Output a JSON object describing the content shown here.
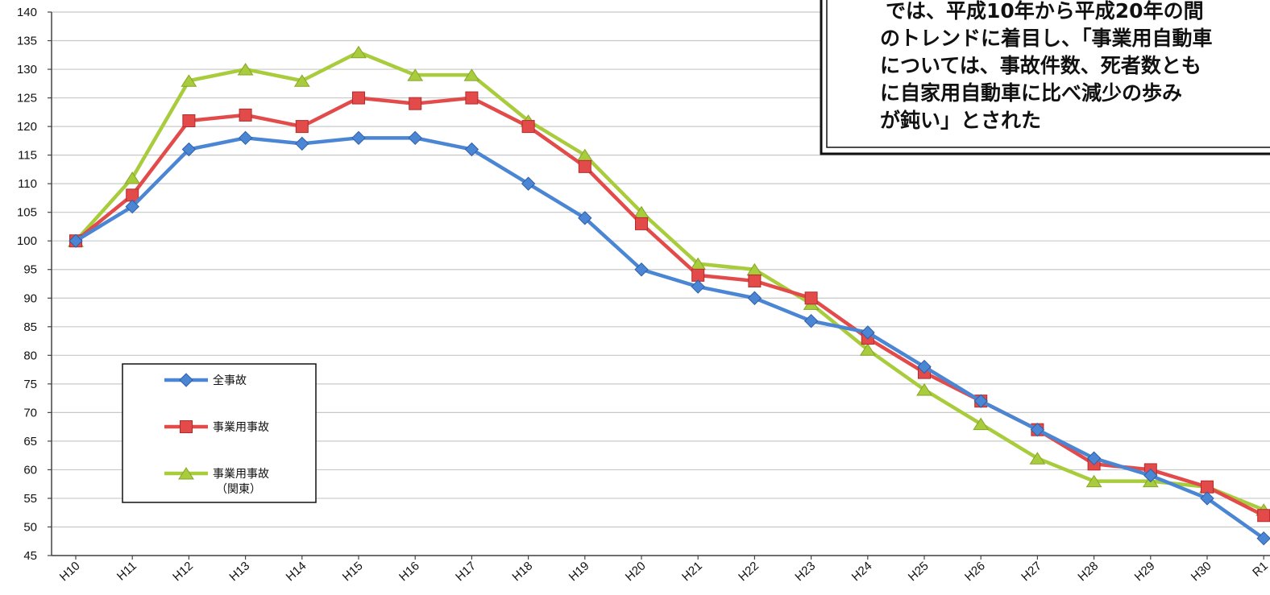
{
  "chart_data": {
    "type": "line",
    "categories": [
      "H10",
      "H11",
      "H12",
      "H13",
      "H14",
      "H15",
      "H16",
      "H17",
      "H18",
      "H19",
      "H20",
      "H21",
      "H22",
      "H23",
      "H24",
      "H25",
      "H26",
      "H27",
      "H28",
      "H29",
      "H30",
      "R1"
    ],
    "ylim": [
      45,
      140
    ],
    "ytick_step": 5,
    "grid": true,
    "legend_position": "bottom-left",
    "series": [
      {
        "name": "全事故",
        "color": "#4a86d4",
        "marker": "diamond",
        "values": [
          100,
          106,
          116,
          118,
          117,
          118,
          118,
          116,
          110,
          104,
          95,
          92,
          90,
          86,
          84,
          78,
          72,
          67,
          62,
          59,
          55,
          48
        ]
      },
      {
        "name": "事業用事故",
        "color": "#e34a4a",
        "marker": "square",
        "values": [
          100,
          108,
          121,
          122,
          120,
          125,
          124,
          125,
          120,
          113,
          103,
          94,
          93,
          90,
          83,
          77,
          72,
          67,
          61,
          60,
          57,
          52
        ]
      },
      {
        "name": "事業用事故",
        "name_line2": "（関東）",
        "color": "#a8cc3c",
        "marker": "triangle",
        "values": [
          100,
          111,
          128,
          130,
          128,
          133,
          129,
          129,
          121,
          115,
          105,
          96,
          95,
          89,
          81,
          74,
          68,
          62,
          58,
          58,
          57,
          53
        ]
      }
    ],
    "annotation": {
      "lines": [
        "では、平成10年から平成20年の間",
        "のトレンドに着目し、「事業用自動車",
        "については、事故件数、死者数とも",
        "に自家用自動車に比べ減少の歩み",
        "が鈍い」とされた"
      ]
    }
  }
}
